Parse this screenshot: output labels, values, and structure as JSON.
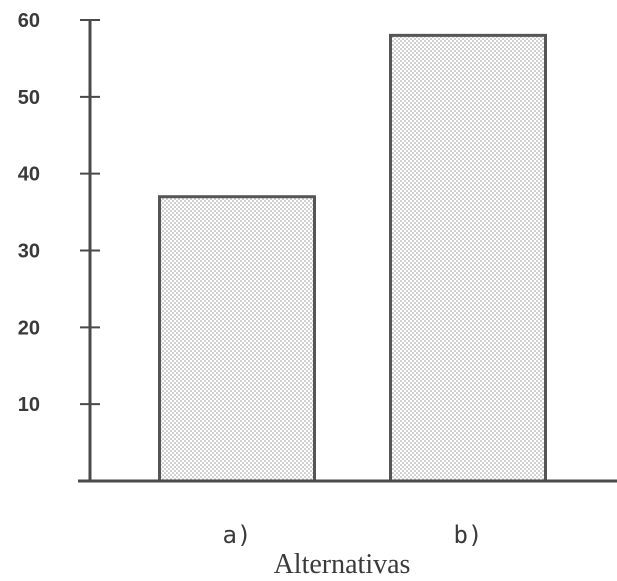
{
  "chart_data": {
    "type": "bar",
    "categories": [
      "a)",
      "b)"
    ],
    "values": [
      37,
      58
    ],
    "title": "",
    "xlabel": "Alternativas",
    "ylabel": "",
    "ylim": [
      0,
      60
    ],
    "yticks": [
      10,
      20,
      30,
      40,
      50,
      60
    ],
    "ytick_labels": [
      "10",
      "20",
      "30",
      "40",
      "50",
      "60"
    ],
    "grid": false,
    "legend": "none",
    "bar_fill": "stippled",
    "colors": {
      "axis": "#4a4a4a",
      "bar_edge": "#555555",
      "stipple_dot": "#9a9a9a",
      "text": "#3a3a3a"
    }
  }
}
